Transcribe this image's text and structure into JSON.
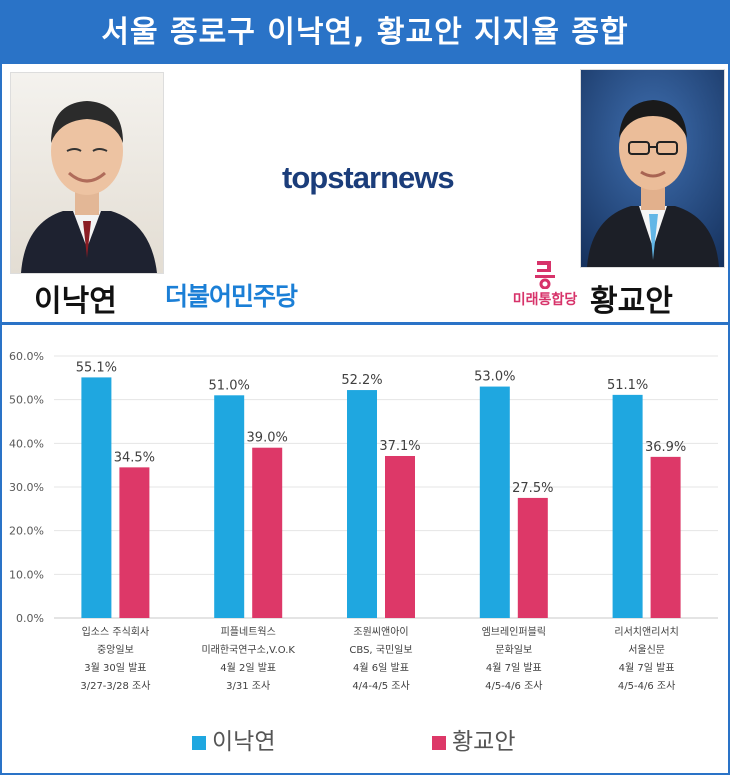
{
  "header": {
    "title": "서울 종로구 이낙연, 황교안 지지율 종합",
    "brand": "topstarnews",
    "left_candidate": "이낙연",
    "left_party": "더불어민주당",
    "right_candidate": "황교안",
    "right_party": "미래통합당"
  },
  "colors": {
    "banner": "#2a73c7",
    "series1": "#1fa7e0",
    "series2": "#dd3868"
  },
  "chart_data": {
    "type": "bar",
    "ylim": [
      0,
      60
    ],
    "yticks": [
      "0.0%",
      "10.0%",
      "20.0%",
      "30.0%",
      "40.0%",
      "50.0%",
      "60.0%"
    ],
    "categories": [
      [
        "입소스 주식회사",
        "중앙일보",
        "3월 30일 발표",
        "3/27-3/28 조사"
      ],
      [
        "피플네트웍스",
        "미래한국연구소,V.O.K",
        "4월 2일 발표",
        "3/31 조사"
      ],
      [
        "조원씨앤아이",
        "CBS, 국민일보",
        "4월 6일 발표",
        "4/4-4/5 조사"
      ],
      [
        "엠브레인퍼블릭",
        "문화일보",
        "4월 7일 발표",
        "4/5-4/6 조사"
      ],
      [
        "리서치앤리서치",
        "서울신문",
        "4월 7일 발표",
        "4/5-4/6 조사"
      ]
    ],
    "series": [
      {
        "name": "이낙연",
        "values": [
          55.1,
          51.0,
          52.2,
          53.0,
          51.1
        ],
        "labels": [
          "55.1%",
          "51.0%",
          "52.2%",
          "53.0%",
          "51.1%"
        ]
      },
      {
        "name": "황교안",
        "values": [
          34.5,
          39.0,
          37.1,
          27.5,
          36.9
        ],
        "labels": [
          "34.5%",
          "39.0%",
          "37.1%",
          "27.5%",
          "36.9%"
        ]
      }
    ],
    "legend": "bottom"
  }
}
